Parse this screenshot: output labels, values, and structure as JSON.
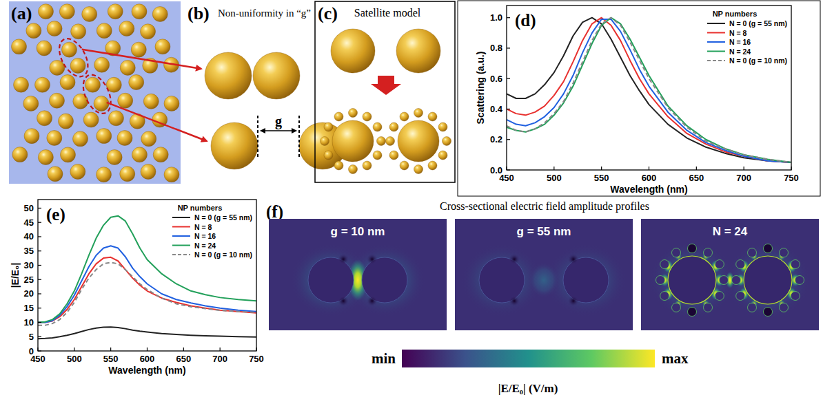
{
  "figure": {
    "a": {
      "letter": "(a)"
    },
    "b": {
      "letter": "(b)",
      "title": "Non-uniformity in “g”",
      "gap_label": "g"
    },
    "c": {
      "letter": "(c)",
      "title": "Satellite model"
    },
    "f": {
      "letter": "(f)",
      "title": "Cross-sectional electric field amplitude profiles",
      "maps": [
        {
          "label": "g = 10 nm"
        },
        {
          "label": "g = 55 nm"
        },
        {
          "label": "N = 24"
        }
      ],
      "colorbar": {
        "min_label": "min",
        "max_label": "max",
        "label": "|E/E₀| (V/m)"
      }
    }
  },
  "chart_data": [
    {
      "type": "line",
      "panel_label": "(d)",
      "x_label": "Wavelength (nm)",
      "y_label": "Scattering (a.u.)",
      "legend_title": "NP numbers",
      "legend": "upper right",
      "grid": false,
      "xlim": [
        450,
        750
      ],
      "ylim": [
        0,
        1.08
      ],
      "xticks": [
        450,
        500,
        550,
        600,
        650,
        700,
        750
      ],
      "yticks": [
        {
          "value": 0,
          "label": "0.0"
        },
        {
          "value": 0.2,
          "label": "0.2"
        },
        {
          "value": 0.4,
          "label": "0.4"
        },
        {
          "value": 0.6,
          "label": "0.6"
        },
        {
          "value": 0.8,
          "label": "0.8"
        },
        {
          "value": 1.0,
          "label": "1.0"
        }
      ],
      "x": [
        450,
        460,
        470,
        480,
        490,
        500,
        510,
        520,
        530,
        540,
        550,
        560,
        570,
        580,
        590,
        600,
        620,
        640,
        660,
        680,
        700,
        725,
        750
      ],
      "series": [
        {
          "name": "N = 0 (g = 55 nm)",
          "color": "#222222",
          "line_style": "solid",
          "values": [
            0.5,
            0.47,
            0.47,
            0.5,
            0.56,
            0.64,
            0.75,
            0.88,
            0.97,
            1.0,
            0.96,
            0.86,
            0.74,
            0.62,
            0.52,
            0.43,
            0.3,
            0.21,
            0.15,
            0.11,
            0.08,
            0.06,
            0.05
          ]
        },
        {
          "name": "N = 8",
          "color": "#e8312f",
          "line_style": "solid",
          "values": [
            0.4,
            0.37,
            0.36,
            0.38,
            0.42,
            0.49,
            0.58,
            0.71,
            0.85,
            0.96,
            1.0,
            0.95,
            0.85,
            0.72,
            0.6,
            0.5,
            0.35,
            0.24,
            0.17,
            0.12,
            0.09,
            0.06,
            0.05
          ]
        },
        {
          "name": "N = 16",
          "color": "#2060e0",
          "line_style": "solid",
          "values": [
            0.33,
            0.3,
            0.29,
            0.31,
            0.35,
            0.41,
            0.5,
            0.62,
            0.77,
            0.9,
            0.99,
            0.99,
            0.91,
            0.79,
            0.66,
            0.55,
            0.38,
            0.26,
            0.18,
            0.13,
            0.09,
            0.06,
            0.05
          ]
        },
        {
          "name": "N = 24",
          "color": "#22a05a",
          "line_style": "solid",
          "values": [
            0.28,
            0.26,
            0.25,
            0.27,
            0.3,
            0.36,
            0.44,
            0.55,
            0.69,
            0.83,
            0.95,
            1.0,
            0.96,
            0.86,
            0.74,
            0.62,
            0.42,
            0.29,
            0.2,
            0.14,
            0.1,
            0.07,
            0.05
          ]
        },
        {
          "name": "N = 0 (g = 10 nm)",
          "color": "#888888",
          "line_style": "dashed",
          "values": [
            0.29,
            0.26,
            0.25,
            0.27,
            0.31,
            0.37,
            0.45,
            0.57,
            0.71,
            0.85,
            0.96,
            1.0,
            0.95,
            0.84,
            0.72,
            0.6,
            0.41,
            0.28,
            0.19,
            0.14,
            0.1,
            0.07,
            0.05
          ]
        }
      ]
    },
    {
      "type": "line",
      "panel_label": "(e)",
      "x_label": "Wavelength (nm)",
      "y_label": "|E/E₀|",
      "legend_title": "NP numbers",
      "legend": "upper right",
      "grid": false,
      "xlim": [
        450,
        750
      ],
      "ylim": [
        0,
        53
      ],
      "xticks": [
        450,
        500,
        550,
        600,
        650,
        700,
        750
      ],
      "yticks": [
        0,
        5,
        10,
        15,
        20,
        25,
        30,
        35,
        40,
        45,
        50
      ],
      "x": [
        450,
        460,
        470,
        480,
        490,
        500,
        510,
        520,
        530,
        540,
        550,
        560,
        570,
        580,
        590,
        600,
        620,
        640,
        660,
        680,
        700,
        725,
        750
      ],
      "series": [
        {
          "name": "N = 0 (g = 55 nm)",
          "color": "#222222",
          "line_style": "solid",
          "values": [
            4.3,
            4.4,
            4.6,
            5.0,
            5.5,
            6.1,
            6.8,
            7.5,
            8.0,
            8.3,
            8.4,
            8.2,
            7.8,
            7.3,
            6.9,
            6.6,
            6.1,
            5.8,
            5.5,
            5.3,
            5.2,
            5.0,
            4.9
          ]
        },
        {
          "name": "N = 8",
          "color": "#e8312f",
          "line_style": "solid",
          "values": [
            10,
            10,
            10.5,
            12,
            14.5,
            18,
            22.5,
            27,
            30.5,
            32.5,
            32.8,
            31.5,
            28.5,
            25.5,
            23,
            21,
            18.5,
            17,
            15.8,
            15,
            14.3,
            13.8,
            13.3
          ]
        },
        {
          "name": "N = 16",
          "color": "#2060e0",
          "line_style": "solid",
          "values": [
            10,
            10,
            10.6,
            12.5,
            15.5,
            19.5,
            24.5,
            29.5,
            33.5,
            36,
            36.8,
            36,
            33,
            29,
            26,
            23.5,
            20,
            18,
            16.8,
            15.8,
            15,
            14.3,
            13.8
          ]
        },
        {
          "name": "N = 24",
          "color": "#22a05a",
          "line_style": "solid",
          "values": [
            10,
            10.2,
            11,
            13,
            16.5,
            21,
            27,
            33.5,
            39.5,
            44,
            46.8,
            47.3,
            45.5,
            41,
            36,
            32,
            27,
            23.5,
            21,
            19.7,
            18.7,
            18,
            17.5
          ]
        },
        {
          "name": "N = 0 (g = 10 nm)",
          "color": "#888888",
          "line_style": "dashed",
          "values": [
            9,
            9,
            9.6,
            11,
            13.5,
            17,
            21.5,
            25.5,
            28.5,
            30.5,
            31,
            30.5,
            28.5,
            26,
            23.5,
            21.5,
            18.5,
            16.5,
            15.5,
            14.8,
            14.2,
            13.8,
            13.5
          ]
        }
      ]
    }
  ]
}
